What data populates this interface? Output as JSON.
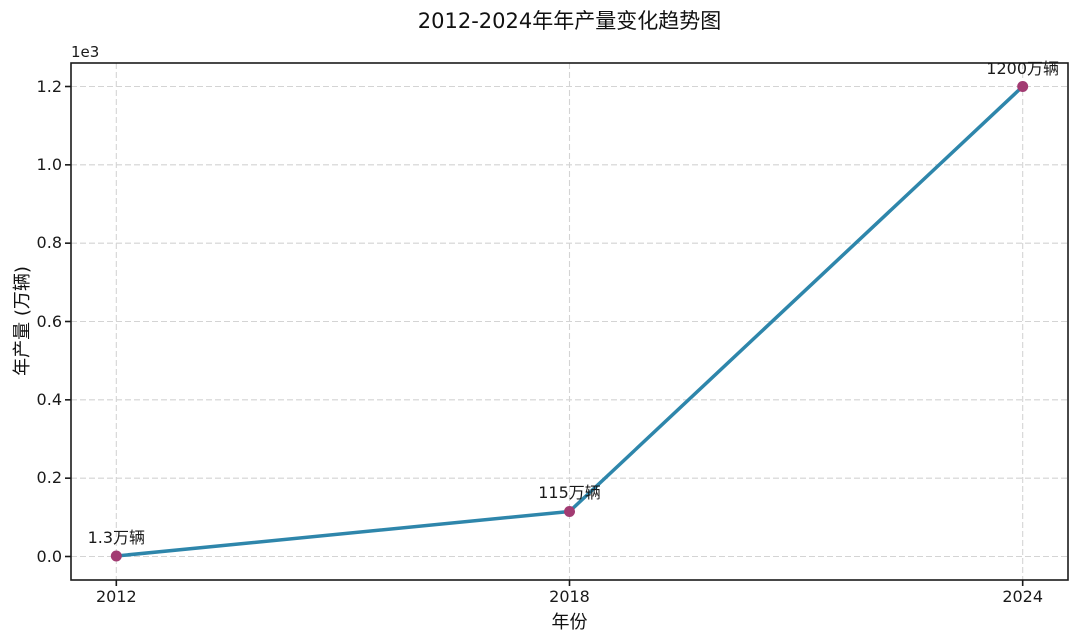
{
  "chart_data": {
    "type": "line",
    "title": "2012-2024年年产量变化趋势图",
    "xlabel": "年份",
    "ylabel": "年产量 (万辆)",
    "x": [
      2012,
      2018,
      2024
    ],
    "values": [
      1.3,
      115,
      1200
    ],
    "annotations": [
      "1.3万辆",
      "115万辆",
      "1200万辆"
    ],
    "xticks": [
      2012,
      2018,
      2024
    ],
    "xtick_labels": [
      "2012",
      "2018",
      "2024"
    ],
    "yticks": [
      0,
      200,
      400,
      600,
      800,
      1000,
      1200
    ],
    "ytick_labels": [
      "0.0",
      "0.2",
      "0.4",
      "0.6",
      "0.8",
      "1.0",
      "1.2"
    ],
    "y_offset_label": "1e3",
    "xlim": [
      2011.4,
      2024.6
    ],
    "ylim": [
      -60,
      1260
    ],
    "grid": true,
    "grid_style": "dashed",
    "legend": "none",
    "line_color": "#2E86AB",
    "marker_color": "#A23B72",
    "grid_color": "#d4d4d4",
    "spine_color": "#1a1a1a",
    "text_color": "#1a1a1a"
  }
}
